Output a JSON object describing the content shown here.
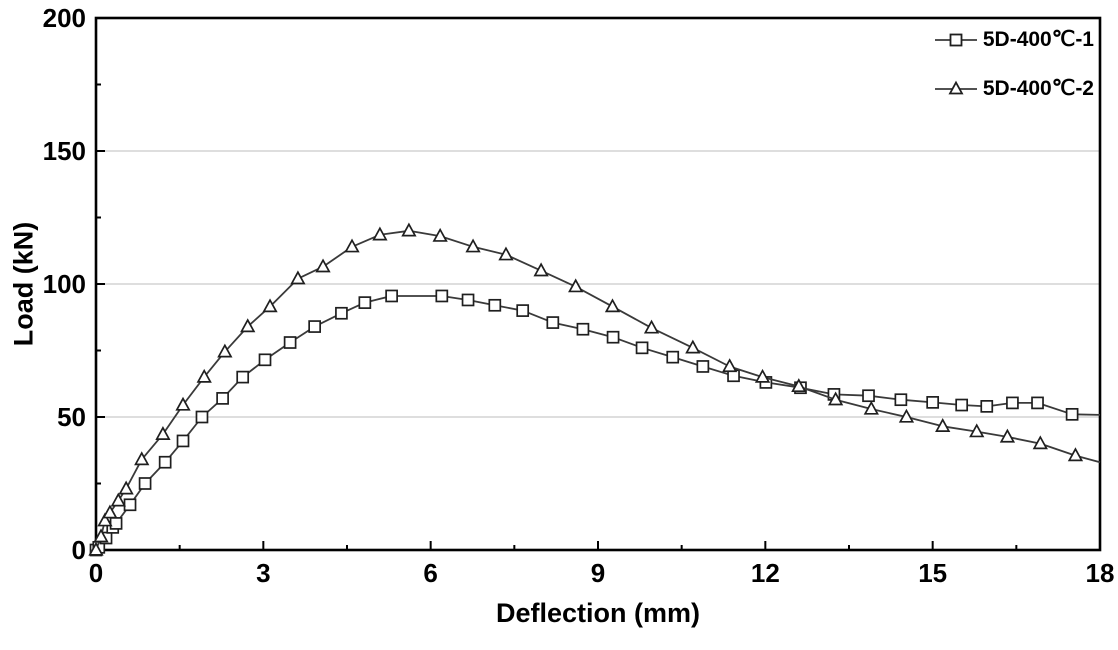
{
  "figure": {
    "background": "#ffffff"
  },
  "chart_data": {
    "type": "line",
    "title": "",
    "xlabel": "Deflection (mm)",
    "ylabel": "Load (kN)",
    "xlim": [
      0,
      18
    ],
    "ylim": [
      0,
      200
    ],
    "x_major_ticks": [
      0,
      3,
      6,
      9,
      12,
      15,
      18
    ],
    "x_minor_step": 1.5,
    "y_major_ticks": [
      0,
      50,
      100,
      150,
      200
    ],
    "y_minor_step": 25,
    "gridlines_y": [
      50,
      100,
      150
    ],
    "grid_on": true,
    "legend_position": "top-right",
    "colors": {
      "grid": "#c9c9c9",
      "frame": "#000000",
      "tick": "#000000",
      "text": "#000000",
      "line": "#3a3a3a",
      "marker_stroke": "#1f1f1f",
      "marker_fill": "#ffffff"
    },
    "series": [
      {
        "name": "5D-400℃-1",
        "marker": "square",
        "tail_no_marker": true,
        "points": [
          [
            0,
            0
          ],
          [
            0.05,
            1
          ],
          [
            0.18,
            4.5
          ],
          [
            0.3,
            8.5
          ],
          [
            0.36,
            10
          ],
          [
            0.61,
            17
          ],
          [
            0.88,
            25
          ],
          [
            1.24,
            33
          ],
          [
            1.56,
            41
          ],
          [
            1.9,
            50
          ],
          [
            2.27,
            57
          ],
          [
            2.63,
            65
          ],
          [
            3.03,
            71.5
          ],
          [
            3.48,
            78
          ],
          [
            3.92,
            84
          ],
          [
            4.4,
            89
          ],
          [
            4.82,
            93
          ],
          [
            5.3,
            95.5
          ],
          [
            6.2,
            95.5
          ],
          [
            6.67,
            94
          ],
          [
            7.15,
            92
          ],
          [
            7.65,
            90
          ],
          [
            8.19,
            85.5
          ],
          [
            8.73,
            83
          ],
          [
            9.27,
            80
          ],
          [
            9.79,
            76
          ],
          [
            10.34,
            72.5
          ],
          [
            10.88,
            69
          ],
          [
            11.43,
            65.5
          ],
          [
            12.01,
            63
          ],
          [
            12.63,
            61
          ],
          [
            13.23,
            58.5
          ],
          [
            13.85,
            58
          ],
          [
            14.43,
            56.5
          ],
          [
            15.0,
            55.5
          ],
          [
            15.52,
            54.5
          ],
          [
            15.97,
            54
          ],
          [
            16.43,
            55.3
          ],
          [
            16.88,
            55.3
          ],
          [
            17.5,
            51
          ],
          [
            18,
            50.8
          ]
        ]
      },
      {
        "name": "5D-400℃-2",
        "marker": "triangle",
        "tail_no_marker": true,
        "points": [
          [
            0,
            0
          ],
          [
            0.09,
            5
          ],
          [
            0.16,
            11
          ],
          [
            0.25,
            14
          ],
          [
            0.4,
            18.5
          ],
          [
            0.54,
            23
          ],
          [
            0.82,
            34
          ],
          [
            1.2,
            43.5
          ],
          [
            1.56,
            54.5
          ],
          [
            1.94,
            65
          ],
          [
            2.31,
            74.5
          ],
          [
            2.72,
            84
          ],
          [
            3.12,
            91.5
          ],
          [
            3.62,
            102
          ],
          [
            4.07,
            106.5
          ],
          [
            4.59,
            114
          ],
          [
            5.09,
            118.5
          ],
          [
            5.61,
            120
          ],
          [
            6.17,
            118
          ],
          [
            6.76,
            114
          ],
          [
            7.35,
            111
          ],
          [
            7.98,
            105
          ],
          [
            8.6,
            99
          ],
          [
            9.26,
            91.5
          ],
          [
            9.96,
            83.5
          ],
          [
            10.7,
            76
          ],
          [
            11.36,
            69
          ],
          [
            11.95,
            65
          ],
          [
            12.6,
            61.5
          ],
          [
            13.26,
            56.5
          ],
          [
            13.9,
            53
          ],
          [
            14.53,
            50
          ],
          [
            15.18,
            46.5
          ],
          [
            15.79,
            44.5
          ],
          [
            16.34,
            42.5
          ],
          [
            16.93,
            40
          ],
          [
            17.56,
            35.5
          ],
          [
            18,
            33
          ]
        ]
      }
    ]
  }
}
